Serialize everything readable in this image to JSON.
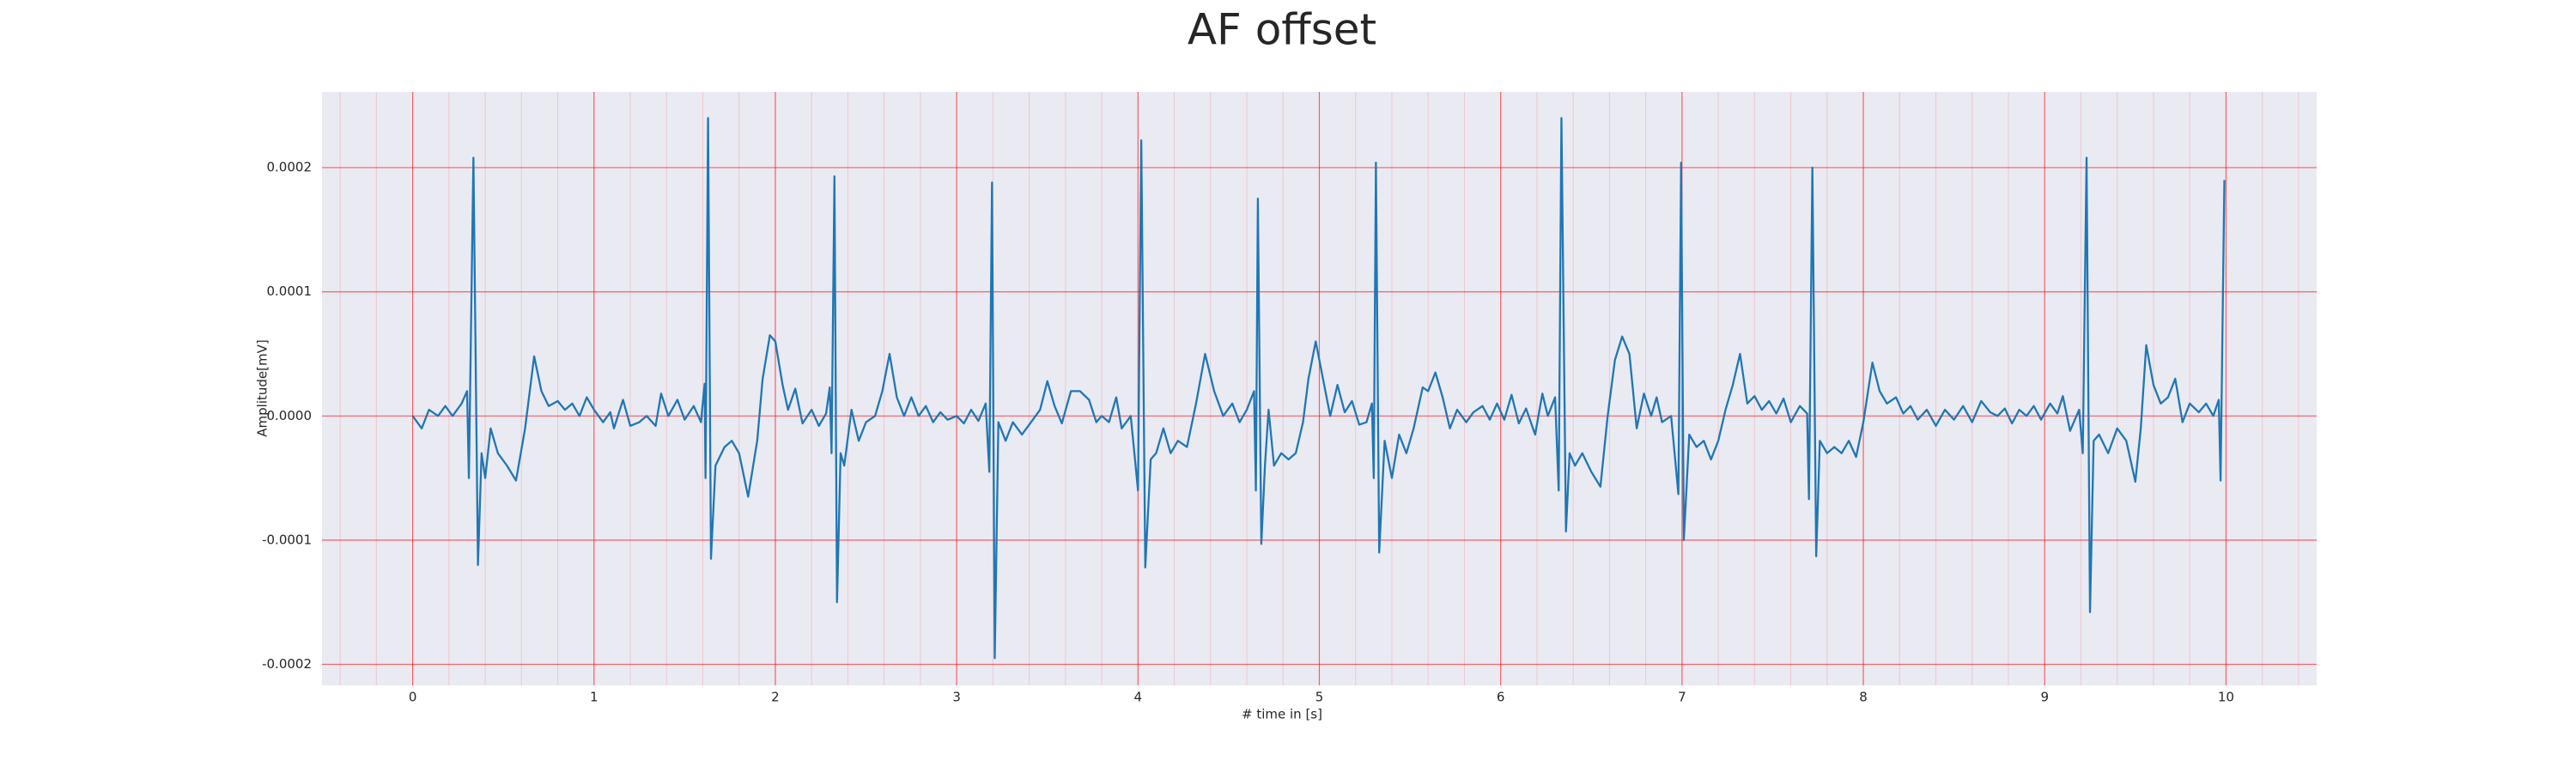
{
  "chart_data": {
    "type": "line",
    "title": "AF offset",
    "xlabel": "# time in [s]",
    "ylabel": "Amplitude[mV]",
    "color": "#1f77b4",
    "grid": true,
    "grid_color": "#ff0000",
    "minor_grid": true,
    "background": "#eaeaf2",
    "xlim": [
      -0.5,
      10.5
    ],
    "ylim": [
      -0.000217,
      0.000261
    ],
    "xticks": [
      0,
      1,
      2,
      3,
      4,
      5,
      6,
      7,
      8,
      9,
      10
    ],
    "yticks": [
      {
        "value": 0.0002,
        "label": "0.0002"
      },
      {
        "value": 0.0001,
        "label": "0.0001"
      },
      {
        "value": 0,
        "label": "0.0000"
      },
      {
        "value": -0.0001,
        "label": "-0.0001"
      },
      {
        "value": -0.0002,
        "label": "-0.0002"
      }
    ],
    "x": [
      0.0,
      0.05,
      0.09,
      0.14,
      0.18,
      0.22,
      0.27,
      0.3,
      0.31,
      0.335,
      0.36,
      0.38,
      0.4,
      0.43,
      0.47,
      0.52,
      0.57,
      0.62,
      0.67,
      0.71,
      0.75,
      0.8,
      0.84,
      0.88,
      0.92,
      0.96,
      1.0,
      1.05,
      1.09,
      1.11,
      1.16,
      1.2,
      1.25,
      1.29,
      1.34,
      1.37,
      1.41,
      1.46,
      1.5,
      1.55,
      1.59,
      1.61,
      1.615,
      1.629,
      1.645,
      1.67,
      1.72,
      1.76,
      1.8,
      1.85,
      1.9,
      1.93,
      1.97,
      2.0,
      2.04,
      2.07,
      2.11,
      2.15,
      2.2,
      2.24,
      2.28,
      2.3,
      2.31,
      2.326,
      2.34,
      2.36,
      2.38,
      2.42,
      2.46,
      2.5,
      2.55,
      2.59,
      2.63,
      2.67,
      2.71,
      2.75,
      2.79,
      2.83,
      2.87,
      2.91,
      2.95,
      3.0,
      3.04,
      3.08,
      3.12,
      3.16,
      3.18,
      3.195,
      3.21,
      3.23,
      3.27,
      3.31,
      3.36,
      3.41,
      3.46,
      3.5,
      3.54,
      3.58,
      3.63,
      3.68,
      3.73,
      3.77,
      3.8,
      3.84,
      3.88,
      3.91,
      3.96,
      4.0,
      4.018,
      4.04,
      4.07,
      4.1,
      4.14,
      4.18,
      4.22,
      4.27,
      4.32,
      4.37,
      4.42,
      4.47,
      4.52,
      4.56,
      4.6,
      4.64,
      4.65,
      4.661,
      4.68,
      4.7,
      4.72,
      4.75,
      4.79,
      4.83,
      4.87,
      4.91,
      4.94,
      4.98,
      5.02,
      5.06,
      5.1,
      5.14,
      5.18,
      5.22,
      5.26,
      5.29,
      5.3,
      5.312,
      5.33,
      5.36,
      5.4,
      5.44,
      5.48,
      5.52,
      5.57,
      5.6,
      5.64,
      5.68,
      5.72,
      5.76,
      5.81,
      5.85,
      5.9,
      5.94,
      5.98,
      6.02,
      6.06,
      6.1,
      6.14,
      6.19,
      6.23,
      6.26,
      6.3,
      6.32,
      6.335,
      6.36,
      6.38,
      6.41,
      6.45,
      6.5,
      6.55,
      6.59,
      6.63,
      6.67,
      6.71,
      6.75,
      6.79,
      6.83,
      6.86,
      6.89,
      6.94,
      6.98,
      6.995,
      7.01,
      7.04,
      7.08,
      7.12,
      7.16,
      7.2,
      7.24,
      7.28,
      7.32,
      7.36,
      7.4,
      7.44,
      7.48,
      7.52,
      7.56,
      7.6,
      7.65,
      7.69,
      7.7,
      7.719,
      7.74,
      7.76,
      7.8,
      7.84,
      7.88,
      7.92,
      7.96,
      8.0,
      8.05,
      8.09,
      8.13,
      8.18,
      8.22,
      8.26,
      8.3,
      8.35,
      8.4,
      8.45,
      8.5,
      8.55,
      8.6,
      8.65,
      8.7,
      8.74,
      8.78,
      8.82,
      8.86,
      8.9,
      8.94,
      8.98,
      9.03,
      9.07,
      9.1,
      9.14,
      9.19,
      9.21,
      9.231,
      9.25,
      9.27,
      9.3,
      9.35,
      9.4,
      9.45,
      9.5,
      9.53,
      9.56,
      9.6,
      9.64,
      9.68,
      9.72,
      9.76,
      9.8,
      9.85,
      9.89,
      9.93,
      9.96,
      9.97,
      9.991
    ],
    "values": [
      0,
      -1e-05,
      5e-06,
      0,
      8e-06,
      0,
      1e-05,
      2e-05,
      -5e-05,
      0.000208,
      -0.00012,
      -3e-05,
      -5e-05,
      -1e-05,
      -3e-05,
      -4e-05,
      -5.2e-05,
      -1e-05,
      4.8e-05,
      2e-05,
      8e-06,
      1.2e-05,
      5e-06,
      1e-05,
      0,
      1.5e-05,
      5e-06,
      -5e-06,
      3e-06,
      -1e-05,
      1.3e-05,
      -8e-06,
      -5e-06,
      0,
      -8e-06,
      1.8e-05,
      0,
      1.3e-05,
      -3e-06,
      8e-06,
      -5e-06,
      2.6e-05,
      -5e-05,
      0.00024,
      -0.000115,
      -4e-05,
      -2.5e-05,
      -2e-05,
      -3e-05,
      -6.5e-05,
      -2e-05,
      3e-05,
      6.5e-05,
      6e-05,
      2.5e-05,
      5e-06,
      2.2e-05,
      -6e-06,
      5e-06,
      -8e-06,
      2e-06,
      2.3e-05,
      -3e-05,
      0.000193,
      -0.00015,
      -3e-05,
      -4e-05,
      5e-06,
      -2e-05,
      -5e-06,
      0,
      2e-05,
      5e-05,
      1.5e-05,
      0,
      1.5e-05,
      0,
      8e-06,
      -5e-06,
      3e-06,
      -3e-06,
      0,
      -6e-06,
      5e-06,
      -4e-06,
      1e-05,
      -4.5e-05,
      0.000188,
      -0.000195,
      -5e-06,
      -2e-05,
      -5e-06,
      -1.5e-05,
      -5e-06,
      5e-06,
      2.8e-05,
      8e-06,
      -6e-06,
      2e-05,
      2e-05,
      1.3e-05,
      -5e-06,
      0,
      -5e-06,
      1.5e-05,
      -1e-05,
      0,
      -6e-05,
      0.000222,
      -0.000122,
      -3.5e-05,
      -3e-05,
      -1e-05,
      -3e-05,
      -2e-05,
      -2.5e-05,
      1e-05,
      5e-05,
      2e-05,
      0,
      1e-05,
      -5e-06,
      5e-06,
      2e-05,
      -6e-05,
      0.000175,
      -0.000103,
      -4e-05,
      5e-06,
      -4e-05,
      -3e-05,
      -3.5e-05,
      -3e-05,
      -5e-06,
      3e-05,
      6e-05,
      3e-05,
      0,
      2.5e-05,
      3e-06,
      1.2e-05,
      -7e-06,
      -5e-06,
      1e-05,
      -5e-05,
      0.000204,
      -0.00011,
      -2e-05,
      -5e-05,
      -1.5e-05,
      -3e-05,
      -1e-05,
      2.3e-05,
      2e-05,
      3.5e-05,
      1.5e-05,
      -1e-05,
      5e-06,
      -5e-06,
      3e-06,
      8e-06,
      -3e-06,
      1e-05,
      -3e-06,
      1.7e-05,
      -6e-06,
      6e-06,
      -1.5e-05,
      1.8e-05,
      0,
      1.5e-05,
      -6e-05,
      0.00024,
      -9.3e-05,
      -3e-05,
      -4e-05,
      -3e-05,
      -4.5e-05,
      -5.7e-05,
      0,
      4.5e-05,
      6.4e-05,
      5e-05,
      -1e-05,
      1.8e-05,
      0,
      1.5e-05,
      -5e-06,
      0,
      -6.3e-05,
      0.000204,
      -0.0001,
      -1.5e-05,
      -2.5e-05,
      -2e-05,
      -3.5e-05,
      -2e-05,
      5e-06,
      2.5e-05,
      5e-05,
      1e-05,
      1.6e-05,
      5e-06,
      1.2e-05,
      2e-06,
      1.4e-05,
      -5e-06,
      8e-06,
      2e-06,
      -6.7e-05,
      0.0002,
      -0.000113,
      -2e-05,
      -3e-05,
      -2.5e-05,
      -3e-05,
      -2e-05,
      -3.3e-05,
      -5e-06,
      4.3e-05,
      2e-05,
      1e-05,
      1.5e-05,
      2e-06,
      8e-06,
      -3e-06,
      5e-06,
      -8e-06,
      5e-06,
      -3e-06,
      8e-06,
      -5e-06,
      1.2e-05,
      3e-06,
      0,
      6e-06,
      -6e-06,
      5e-06,
      0,
      8e-06,
      -3e-06,
      1e-05,
      2e-06,
      1.6e-05,
      -1.2e-05,
      5e-06,
      -3e-05,
      0.000208,
      -0.000158,
      -2e-05,
      -1.5e-05,
      -3e-05,
      -1e-05,
      -2e-05,
      -5.3e-05,
      -1e-05,
      5.7e-05,
      2.5e-05,
      1e-05,
      1.5e-05,
      3e-05,
      -5e-06,
      1e-05,
      3e-06,
      1e-05,
      0,
      1.3e-05,
      -5.2e-05,
      0.00019
    ]
  }
}
